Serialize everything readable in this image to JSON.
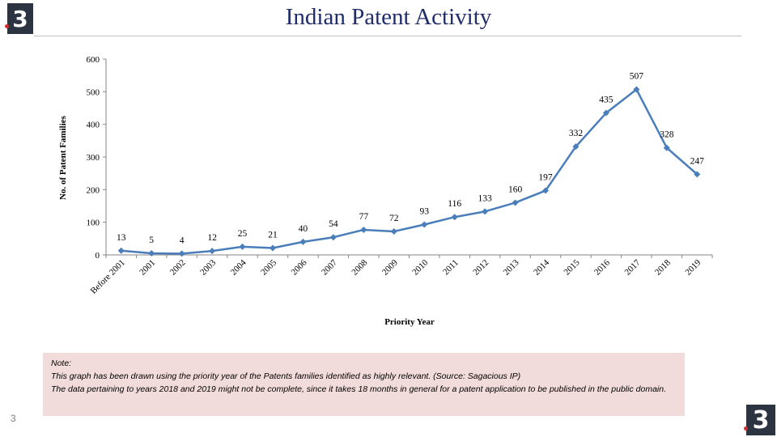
{
  "header": {
    "title": "Indian Patent Activity",
    "logo_glyph": "3"
  },
  "chart_data": {
    "type": "line",
    "title": "",
    "xlabel": "Priority Year",
    "ylabel": "No. of Patent Families",
    "ylim": [
      0,
      600
    ],
    "yticks": [
      0,
      100,
      200,
      300,
      400,
      500,
      600
    ],
    "grid": false,
    "legend": "none",
    "categories": [
      "Before 2001",
      "2001",
      "2002",
      "2003",
      "2004",
      "2005",
      "2006",
      "2007",
      "2008",
      "2009",
      "2010",
      "2011",
      "2012",
      "2013",
      "2014",
      "2015",
      "2016",
      "2017",
      "2018",
      "2019"
    ],
    "series": [
      {
        "values": [
          13,
          5,
          4,
          12,
          25,
          21,
          40,
          54,
          77,
          72,
          93,
          116,
          133,
          160,
          197,
          332,
          435,
          507,
          328,
          247
        ],
        "color": "#4a7ebb"
      }
    ]
  },
  "note": {
    "heading": "Note:",
    "line1": "This graph has been drawn using the priority year of the Patents families identified as highly relevant. (Source: Sagacious IP)",
    "line2": "The data pertaining to years 2018 and 2019 might not be complete, since it takes 18 months in general for a patent application to be published in the public domain."
  },
  "slide_number": "3"
}
